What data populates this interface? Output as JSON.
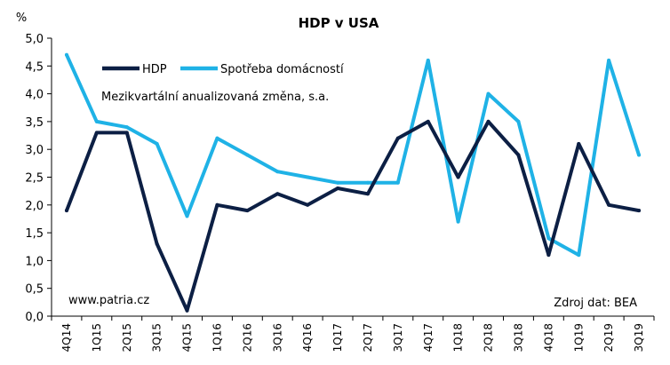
{
  "chart_data": {
    "type": "line",
    "title": "HDP v USA",
    "ylabel": "%",
    "subtitle": "Mezikvartální anualizovaná změna, s.a.",
    "source_left": "www.patria.cz",
    "source_right": "Zdroj dat: BEA",
    "ylim": [
      0,
      5
    ],
    "yticks": [
      0,
      0.5,
      1,
      1.5,
      2,
      2.5,
      3,
      3.5,
      4,
      4.5,
      5
    ],
    "ytick_labels": [
      "0,0",
      "0,5",
      "1,0",
      "1,5",
      "2,0",
      "2,5",
      "3,0",
      "3,5",
      "4,0",
      "4,5",
      "5,0"
    ],
    "categories": [
      "4Q14",
      "1Q15",
      "2Q15",
      "3Q15",
      "4Q15",
      "1Q16",
      "2Q16",
      "3Q16",
      "4Q16",
      "1Q17",
      "2Q17",
      "3Q17",
      "4Q17",
      "1Q18",
      "2Q18",
      "3Q18",
      "4Q18",
      "1Q19",
      "2Q19",
      "3Q19"
    ],
    "series": [
      {
        "name": "HDP",
        "color": "#0c1f44",
        "values": [
          1.9,
          3.3,
          3.3,
          1.3,
          0.1,
          2.0,
          1.9,
          2.2,
          2.0,
          2.3,
          2.2,
          3.2,
          3.5,
          2.5,
          3.5,
          2.9,
          1.1,
          3.1,
          2.0,
          1.9
        ]
      },
      {
        "name": "Spotřeba domácností",
        "color": "#1fb2e6",
        "values": [
          4.7,
          3.5,
          3.4,
          3.1,
          1.8,
          3.2,
          2.9,
          2.6,
          2.5,
          2.4,
          2.4,
          2.4,
          4.6,
          1.7,
          4.0,
          3.5,
          1.4,
          1.1,
          4.6,
          2.9
        ]
      }
    ]
  }
}
